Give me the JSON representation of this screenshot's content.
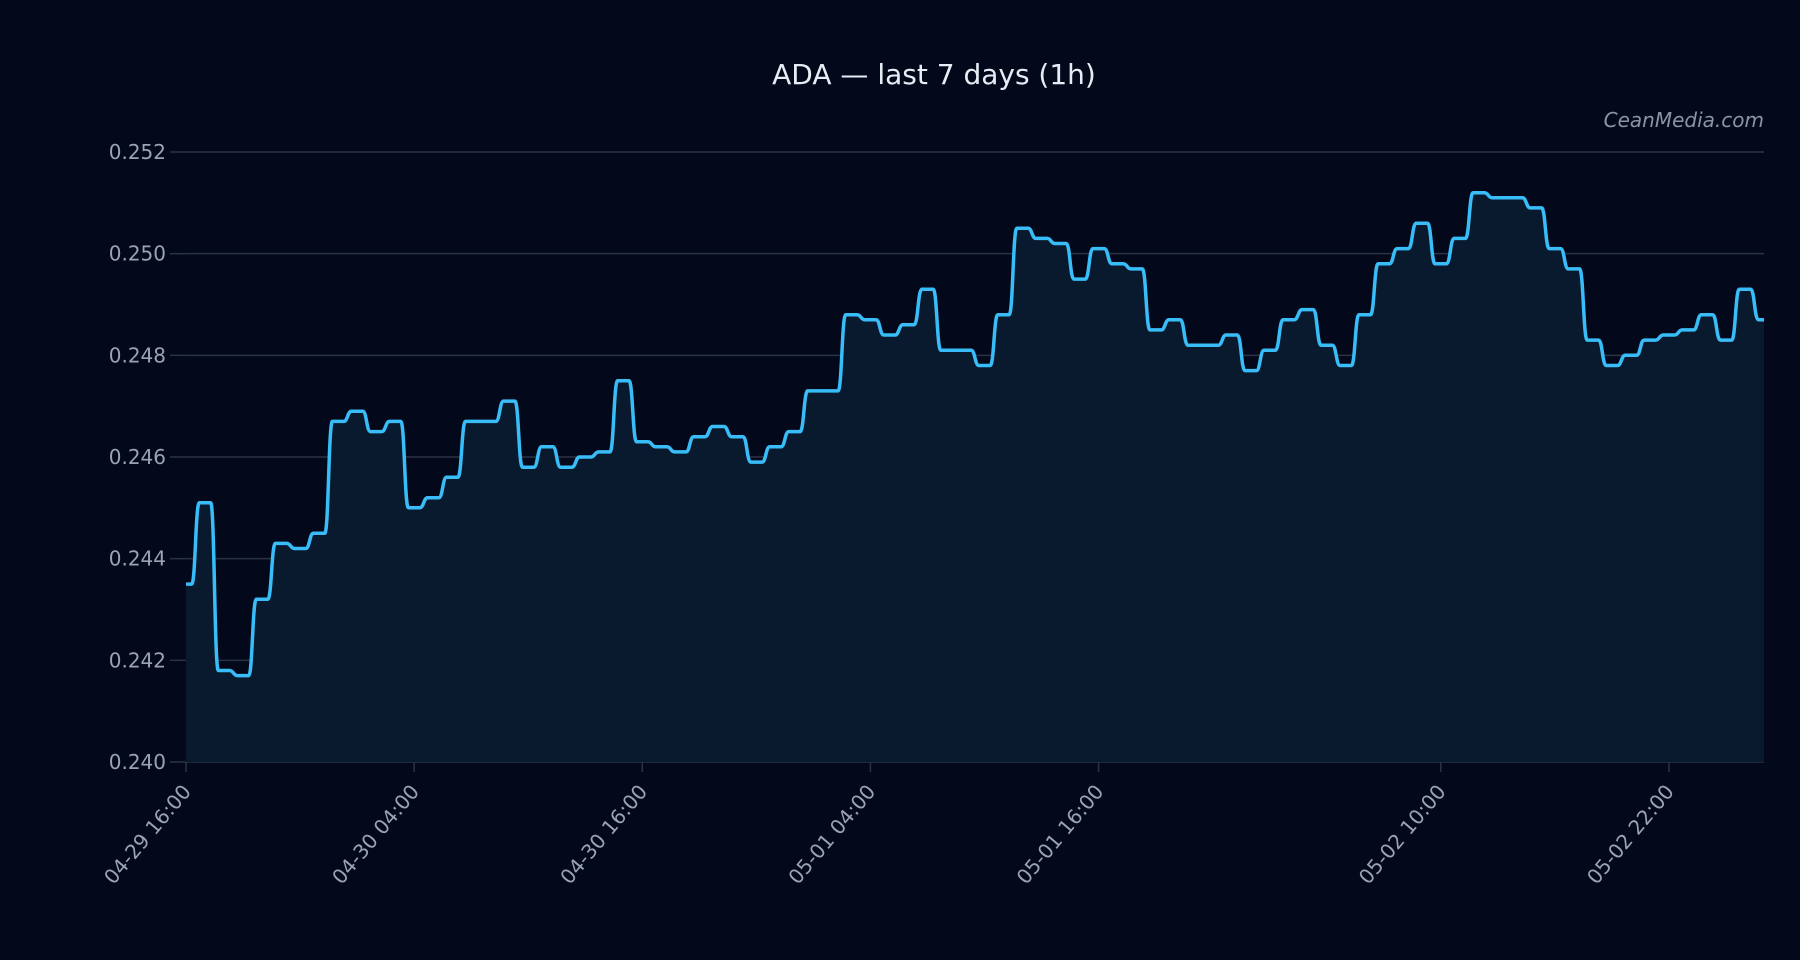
{
  "chart_data": {
    "type": "area",
    "title": "ADA — last 7 days (1h)",
    "watermark": "CeanMedia.com",
    "xlabel": "",
    "ylabel": "",
    "ylim": [
      0.24,
      0.252
    ],
    "yticks": [
      "0.240",
      "0.242",
      "0.244",
      "0.246",
      "0.248",
      "0.250",
      "0.252"
    ],
    "xticks": [
      {
        "label": "04-29 16:00",
        "hour": 0
      },
      {
        "label": "04-30 04:00",
        "hour": 12
      },
      {
        "label": "04-30 16:00",
        "hour": 24
      },
      {
        "label": "05-01 04:00",
        "hour": 36
      },
      {
        "label": "05-01 16:00",
        "hour": 48
      },
      {
        "label": "05-02 10:00",
        "hour": 66
      },
      {
        "label": "05-02 22:00",
        "hour": 78
      }
    ],
    "grid": "horizontal",
    "x_start": "04-29 16:00",
    "x_step": "1h",
    "series": [
      {
        "color": "#38bdf8",
        "fill": "#0a1a2e",
        "values": [
          0.2435,
          0.2451,
          0.2418,
          0.2417,
          0.2432,
          0.2443,
          0.2442,
          0.2445,
          0.2467,
          0.2469,
          0.2465,
          0.2467,
          0.245,
          0.2452,
          0.2456,
          0.2467,
          0.2467,
          0.2471,
          0.2458,
          0.2462,
          0.2458,
          0.246,
          0.2461,
          0.2475,
          0.2463,
          0.2462,
          0.2461,
          0.2464,
          0.2466,
          0.2464,
          0.2459,
          0.2462,
          0.2465,
          0.2473,
          0.2473,
          0.2488,
          0.2487,
          0.2484,
          0.2486,
          0.2493,
          0.2481,
          0.2481,
          0.2478,
          0.2488,
          0.2505,
          0.2503,
          0.2502,
          0.2495,
          0.2501,
          0.2498,
          0.2497,
          0.2485,
          0.2487,
          0.2482,
          0.2482,
          0.2484,
          0.2477,
          0.2481,
          0.2487,
          0.2489,
          0.2482,
          0.2478,
          0.2488,
          0.2498,
          0.2501,
          0.2506,
          0.2498,
          0.2503,
          0.2512,
          0.2511,
          0.2511,
          0.2509,
          0.2501,
          0.2497,
          0.2483,
          0.2478,
          0.248,
          0.2483,
          0.2484,
          0.2485,
          0.2488,
          0.2483,
          0.2493,
          0.2487
        ]
      }
    ]
  }
}
